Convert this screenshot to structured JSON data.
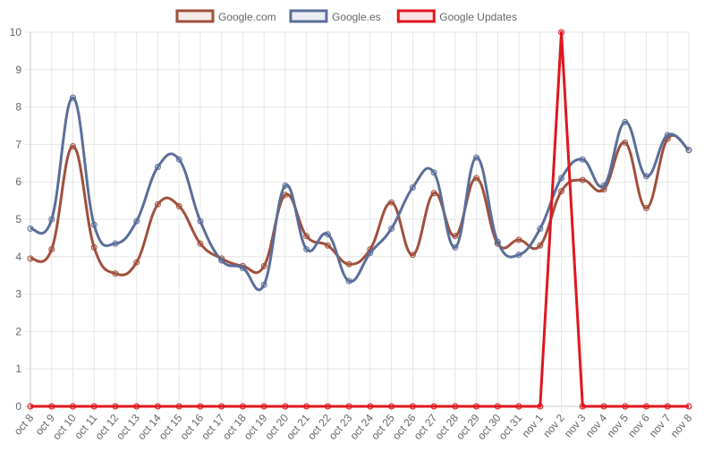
{
  "chart_data": {
    "type": "line",
    "title": "",
    "xlabel": "",
    "ylabel": "",
    "ylim": [
      0,
      10
    ],
    "yticks": [
      "0",
      "1",
      "2",
      "3",
      "4",
      "5",
      "6",
      "7",
      "8",
      "9",
      "10"
    ],
    "grid": true,
    "legend_position": "top",
    "categories": [
      "oct 8",
      "oct 9",
      "oct 10",
      "oct 11",
      "oct 12",
      "oct 13",
      "oct 14",
      "oct 15",
      "oct 16",
      "oct 17",
      "oct 18",
      "oct 19",
      "oct 20",
      "oct 21",
      "oct 22",
      "oct 23",
      "oct 24",
      "oct 25",
      "oct 26",
      "oct 27",
      "oct 28",
      "oct 29",
      "oct 30",
      "oct 31",
      "nov 1",
      "nov 2",
      "nov 3",
      "nov 4",
      "nov 5",
      "nov 6",
      "nov 7",
      "nov 8"
    ],
    "series": [
      {
        "name": "Google.com",
        "color": "#a0503c",
        "smooth": true,
        "values": [
          3.95,
          4.2,
          6.95,
          4.25,
          3.55,
          3.85,
          5.4,
          5.35,
          4.35,
          3.95,
          3.75,
          3.75,
          5.65,
          4.55,
          4.3,
          3.8,
          4.2,
          5.45,
          4.05,
          5.7,
          4.55,
          6.1,
          4.35,
          4.45,
          4.3,
          5.75,
          6.05,
          5.8,
          7.05,
          5.3,
          7.15,
          6.85
        ]
      },
      {
        "name": "Google.es",
        "color": "#5b6e9a",
        "smooth": true,
        "values": [
          4.75,
          5.0,
          8.25,
          4.85,
          4.35,
          4.95,
          6.4,
          6.6,
          4.95,
          3.9,
          3.7,
          3.25,
          5.9,
          4.2,
          4.6,
          3.35,
          4.1,
          4.75,
          5.85,
          6.25,
          4.25,
          6.65,
          4.4,
          4.05,
          4.75,
          6.1,
          6.6,
          5.9,
          7.6,
          6.15,
          7.25,
          6.85
        ]
      },
      {
        "name": "Google Updates",
        "color": "#e0161e",
        "smooth": false,
        "values": [
          0,
          0,
          0,
          0,
          0,
          0,
          0,
          0,
          0,
          0,
          0,
          0,
          0,
          0,
          0,
          0,
          0,
          0,
          0,
          0,
          0,
          0,
          0,
          0,
          0,
          10,
          0,
          0,
          0,
          0,
          0,
          0
        ]
      }
    ]
  }
}
